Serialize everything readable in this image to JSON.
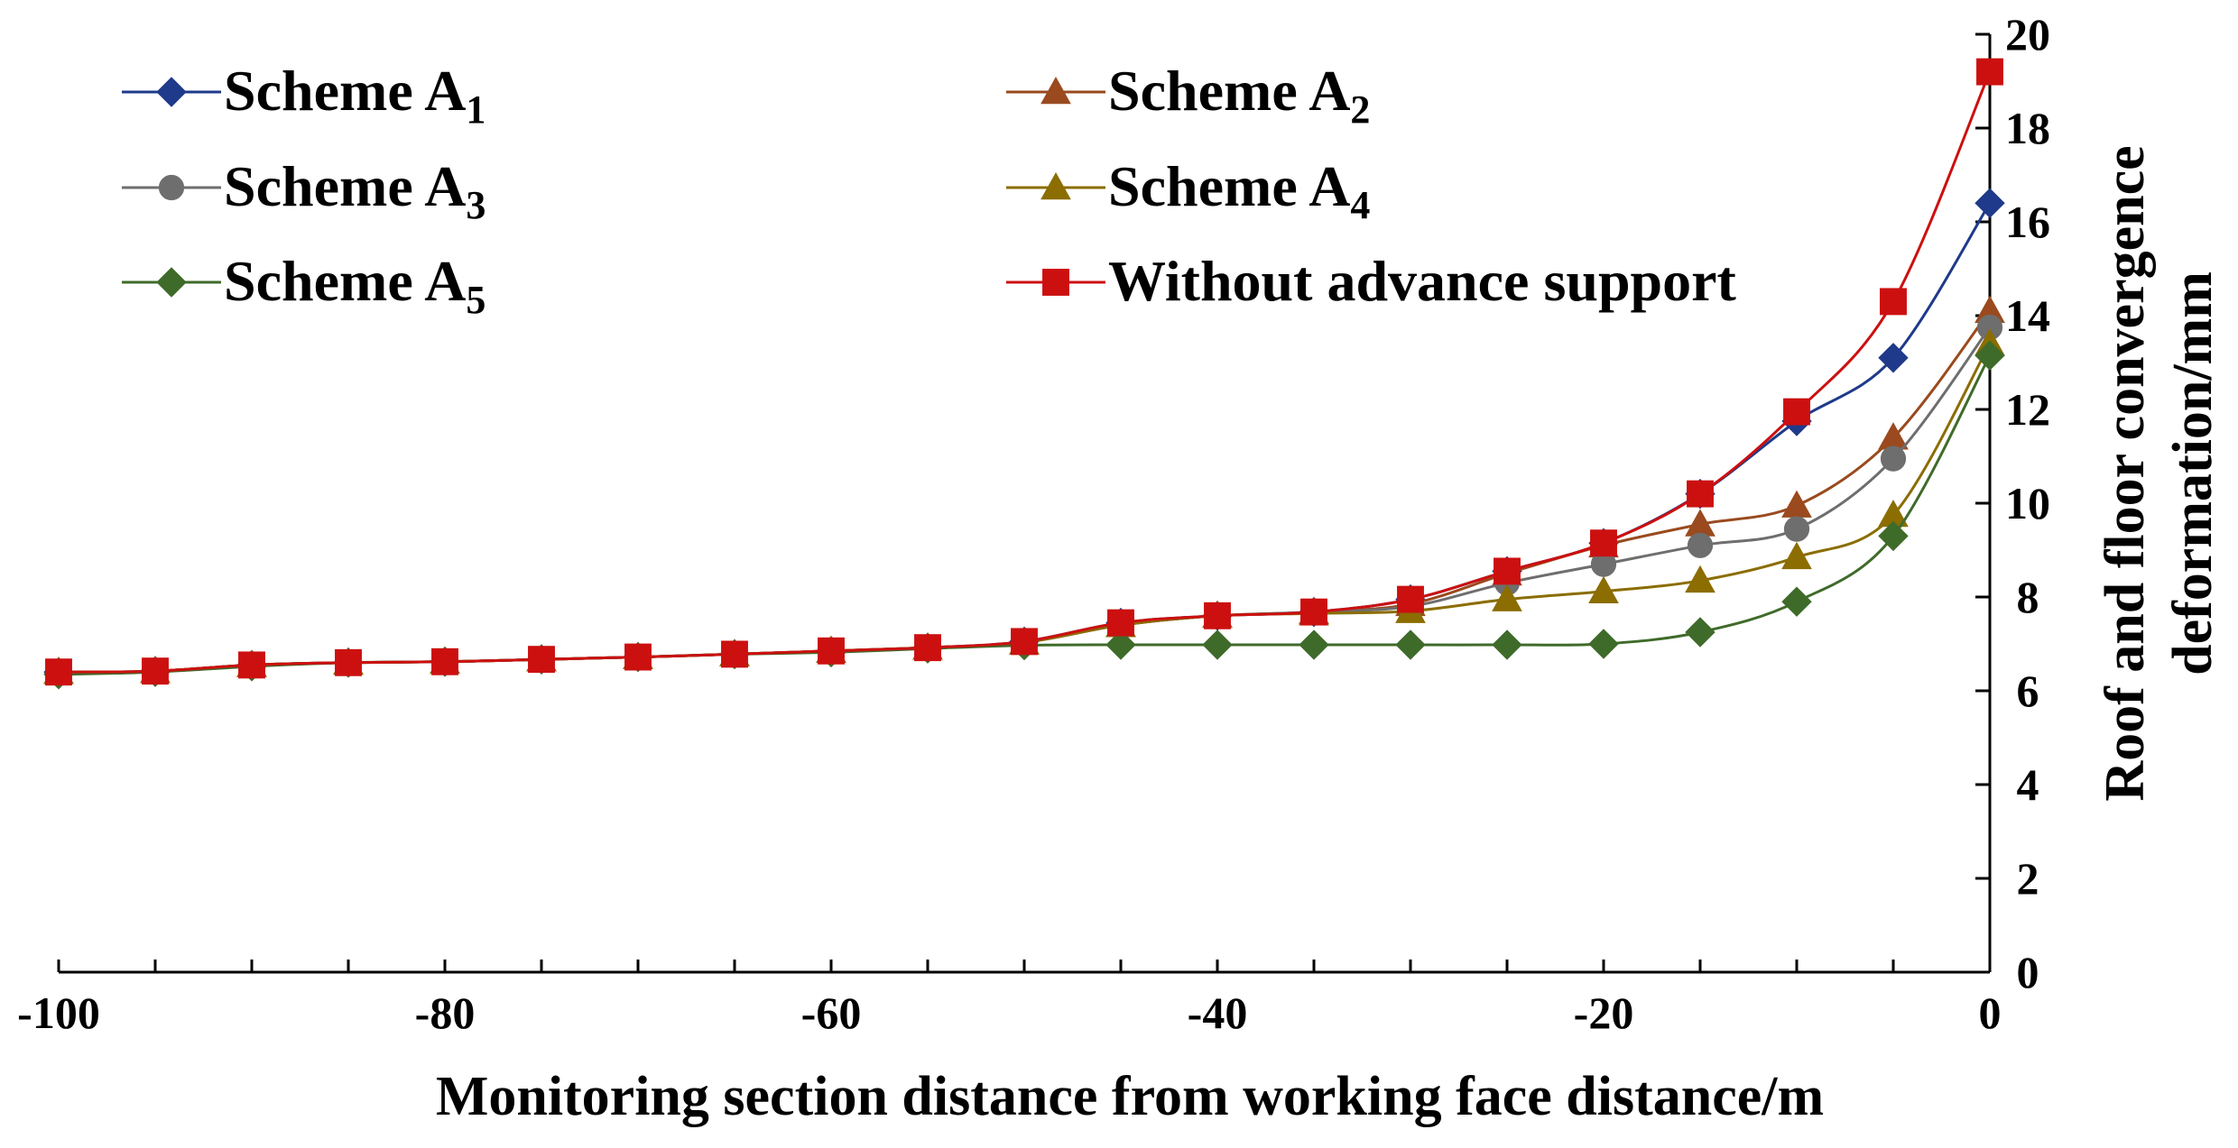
{
  "chart_data": {
    "type": "line",
    "title": "",
    "xlabel": "Monitoring section distance from working face distance/m",
    "ylabel_line1": "Roof and floor convergence",
    "ylabel_line2": "deformation/mm",
    "xlim": [
      -100,
      0
    ],
    "ylim": [
      0,
      20
    ],
    "x_ticks": [
      -100,
      -80,
      -60,
      -40,
      -20,
      0
    ],
    "y_ticks": [
      0,
      2,
      4,
      6,
      8,
      10,
      12,
      14,
      16,
      18,
      20
    ],
    "y_axis_position": "right",
    "grid": false,
    "legend_position": "top-left",
    "x": [
      -100,
      -95,
      -90,
      -85,
      -80,
      -75,
      -70,
      -65,
      -60,
      -55,
      -50,
      -45,
      -40,
      -35,
      -30,
      -25,
      -20,
      -15,
      -10,
      -5,
      0
    ],
    "series": [
      {
        "name": "Scheme A",
        "subscript": "1",
        "color": "#1f3a8a",
        "marker": "diamond",
        "values": [
          6.4,
          6.42,
          6.55,
          6.6,
          6.62,
          6.67,
          6.72,
          6.78,
          6.85,
          6.92,
          7.05,
          7.45,
          7.6,
          7.68,
          7.95,
          8.55,
          9.15,
          10.2,
          11.75,
          13.1,
          16.4
        ]
      },
      {
        "name": "Scheme A",
        "subscript": "2",
        "color": "#9a4a1e",
        "marker": "triangle",
        "values": [
          6.4,
          6.42,
          6.55,
          6.6,
          6.62,
          6.67,
          6.72,
          6.78,
          6.85,
          6.92,
          7.03,
          7.4,
          7.6,
          7.68,
          7.85,
          8.5,
          9.1,
          9.55,
          9.95,
          11.4,
          14.1
        ]
      },
      {
        "name": "Scheme A",
        "subscript": "3",
        "color": "#6e6e6e",
        "marker": "circle",
        "values": [
          6.4,
          6.42,
          6.55,
          6.6,
          6.62,
          6.67,
          6.72,
          6.78,
          6.85,
          6.92,
          7.03,
          7.4,
          7.6,
          7.68,
          7.8,
          8.3,
          8.7,
          9.1,
          9.45,
          10.95,
          13.75
        ]
      },
      {
        "name": "Scheme A",
        "subscript": "4",
        "color": "#8b6d00",
        "marker": "triangle",
        "values": [
          6.4,
          6.42,
          6.55,
          6.6,
          6.62,
          6.67,
          6.72,
          6.78,
          6.85,
          6.92,
          7.03,
          7.4,
          7.6,
          7.65,
          7.7,
          7.95,
          8.12,
          8.35,
          8.85,
          9.75,
          13.4
        ]
      },
      {
        "name": "Scheme A",
        "subscript": "5",
        "color": "#3f6b2a",
        "marker": "diamond",
        "values": [
          6.35,
          6.4,
          6.52,
          6.6,
          6.62,
          6.67,
          6.72,
          6.78,
          6.82,
          6.9,
          6.97,
          6.98,
          6.98,
          6.98,
          6.98,
          6.98,
          7.0,
          7.25,
          7.9,
          9.3,
          13.15
        ]
      },
      {
        "name": "Without advance support",
        "subscript": "",
        "color": "#cc1010",
        "marker": "square",
        "values": [
          6.4,
          6.42,
          6.55,
          6.6,
          6.62,
          6.67,
          6.72,
          6.78,
          6.85,
          6.92,
          7.05,
          7.45,
          7.6,
          7.68,
          7.95,
          8.55,
          9.15,
          10.2,
          11.95,
          14.3,
          19.2
        ]
      }
    ]
  }
}
